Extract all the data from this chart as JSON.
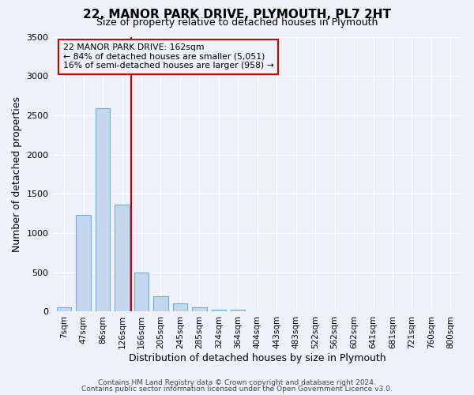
{
  "title": "22, MANOR PARK DRIVE, PLYMOUTH, PL7 2HT",
  "subtitle": "Size of property relative to detached houses in Plymouth",
  "xlabel": "Distribution of detached houses by size in Plymouth",
  "ylabel": "Number of detached properties",
  "bar_labels": [
    "7sqm",
    "47sqm",
    "86sqm",
    "126sqm",
    "166sqm",
    "205sqm",
    "245sqm",
    "285sqm",
    "324sqm",
    "364sqm",
    "404sqm",
    "443sqm",
    "483sqm",
    "522sqm",
    "562sqm",
    "602sqm",
    "641sqm",
    "681sqm",
    "721sqm",
    "760sqm",
    "800sqm"
  ],
  "bar_values": [
    50,
    1230,
    2590,
    1360,
    500,
    200,
    110,
    50,
    20,
    20,
    5,
    5,
    5,
    0,
    0,
    0,
    0,
    0,
    0,
    0,
    0
  ],
  "bar_color": "#c5d8ee",
  "bar_edge_color": "#6baed6",
  "vline_color": "#cc0000",
  "annotation_title": "22 MANOR PARK DRIVE: 162sqm",
  "annotation_line1": "← 84% of detached houses are smaller (5,051)",
  "annotation_line2": "16% of semi-detached houses are larger (958) →",
  "annotation_box_color": "#cc0000",
  "ylim": [
    0,
    3500
  ],
  "yticks": [
    0,
    500,
    1000,
    1500,
    2000,
    2500,
    3000,
    3500
  ],
  "background_color": "#eef2f8",
  "grid_color": "#ffffff",
  "footer1": "Contains HM Land Registry data © Crown copyright and database right 2024.",
  "footer2": "Contains public sector information licensed under the Open Government Licence v3.0."
}
